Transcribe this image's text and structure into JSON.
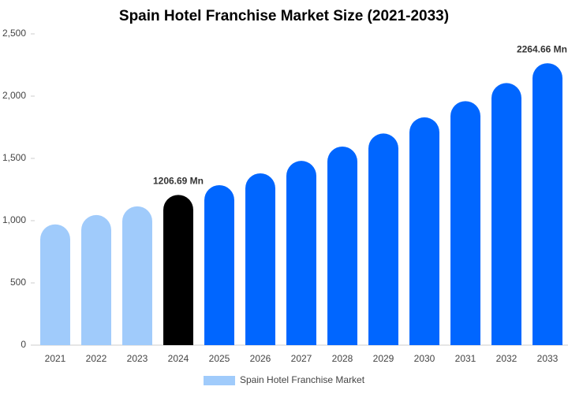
{
  "chart_data": {
    "type": "bar",
    "title": "Spain Hotel Franchise Market Size (2021-2033)",
    "categories": [
      "2021",
      "2022",
      "2023",
      "2024",
      "2025",
      "2026",
      "2027",
      "2028",
      "2029",
      "2030",
      "2031",
      "2032",
      "2033"
    ],
    "series": [
      {
        "name": "Spain Hotel Franchise Market",
        "color": "#a0cbfb",
        "values": [
          970,
          1045,
          1115,
          1206.69,
          1285,
          1380,
          1480,
          1595,
          1700,
          1830,
          1960,
          2105,
          2264.66
        ],
        "value_labels": [
          null,
          null,
          null,
          "1206.69 Mn",
          null,
          null,
          null,
          null,
          null,
          null,
          null,
          null,
          "2264.66 Mn"
        ],
        "colors": [
          "#a0cbfb",
          "#a0cbfb",
          "#a0cbfb",
          "#000000",
          "#0066ff",
          "#0066ff",
          "#0066ff",
          "#0066ff",
          "#0066ff",
          "#0066ff",
          "#0066ff",
          "#0066ff",
          "#0066ff"
        ]
      }
    ],
    "ylim": [
      0,
      2500
    ],
    "yticks": [
      0,
      500,
      {
        "value": 1000,
        "label": "1,000"
      },
      {
        "value": 1500,
        "label": "1,500"
      },
      {
        "value": 2000,
        "label": "2,000"
      },
      {
        "value": 2500,
        "label": "2,500"
      }
    ],
    "grid": false,
    "legend": "bottom"
  }
}
